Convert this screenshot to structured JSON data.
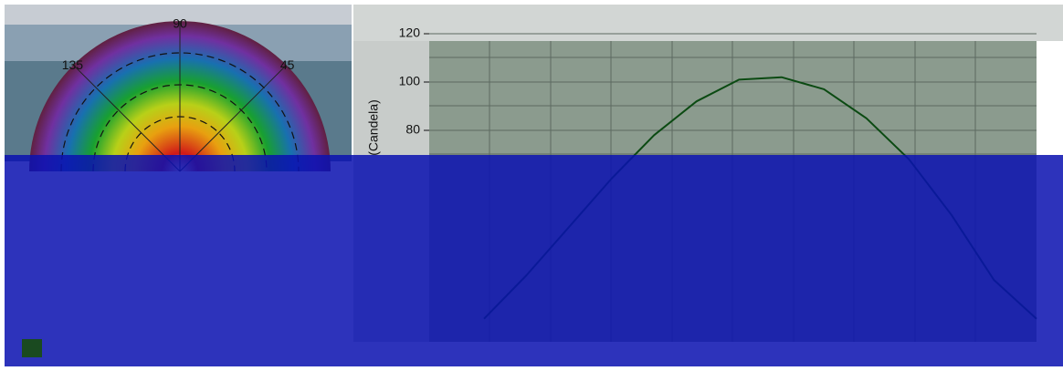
{
  "chart_data": [
    {
      "type": "polar",
      "angle_ticks": [
        90,
        135,
        45
      ]
    },
    {
      "type": "line",
      "y_label": "(Candela)",
      "categories": [
        null,
        null,
        null,
        null,
        null,
        null,
        null,
        null,
        null,
        null,
        null,
        null,
        null,
        null
      ],
      "series": [
        {
          "color": "#0b4a12",
          "values": [
            2,
            20,
            40,
            60,
            78,
            92,
            101,
            102,
            97,
            85,
            68,
            45,
            18,
            2
          ]
        }
      ],
      "ylim": [
        0,
        120
      ],
      "yticks": [
        80,
        100,
        120
      ],
      "grid": true
    }
  ]
}
